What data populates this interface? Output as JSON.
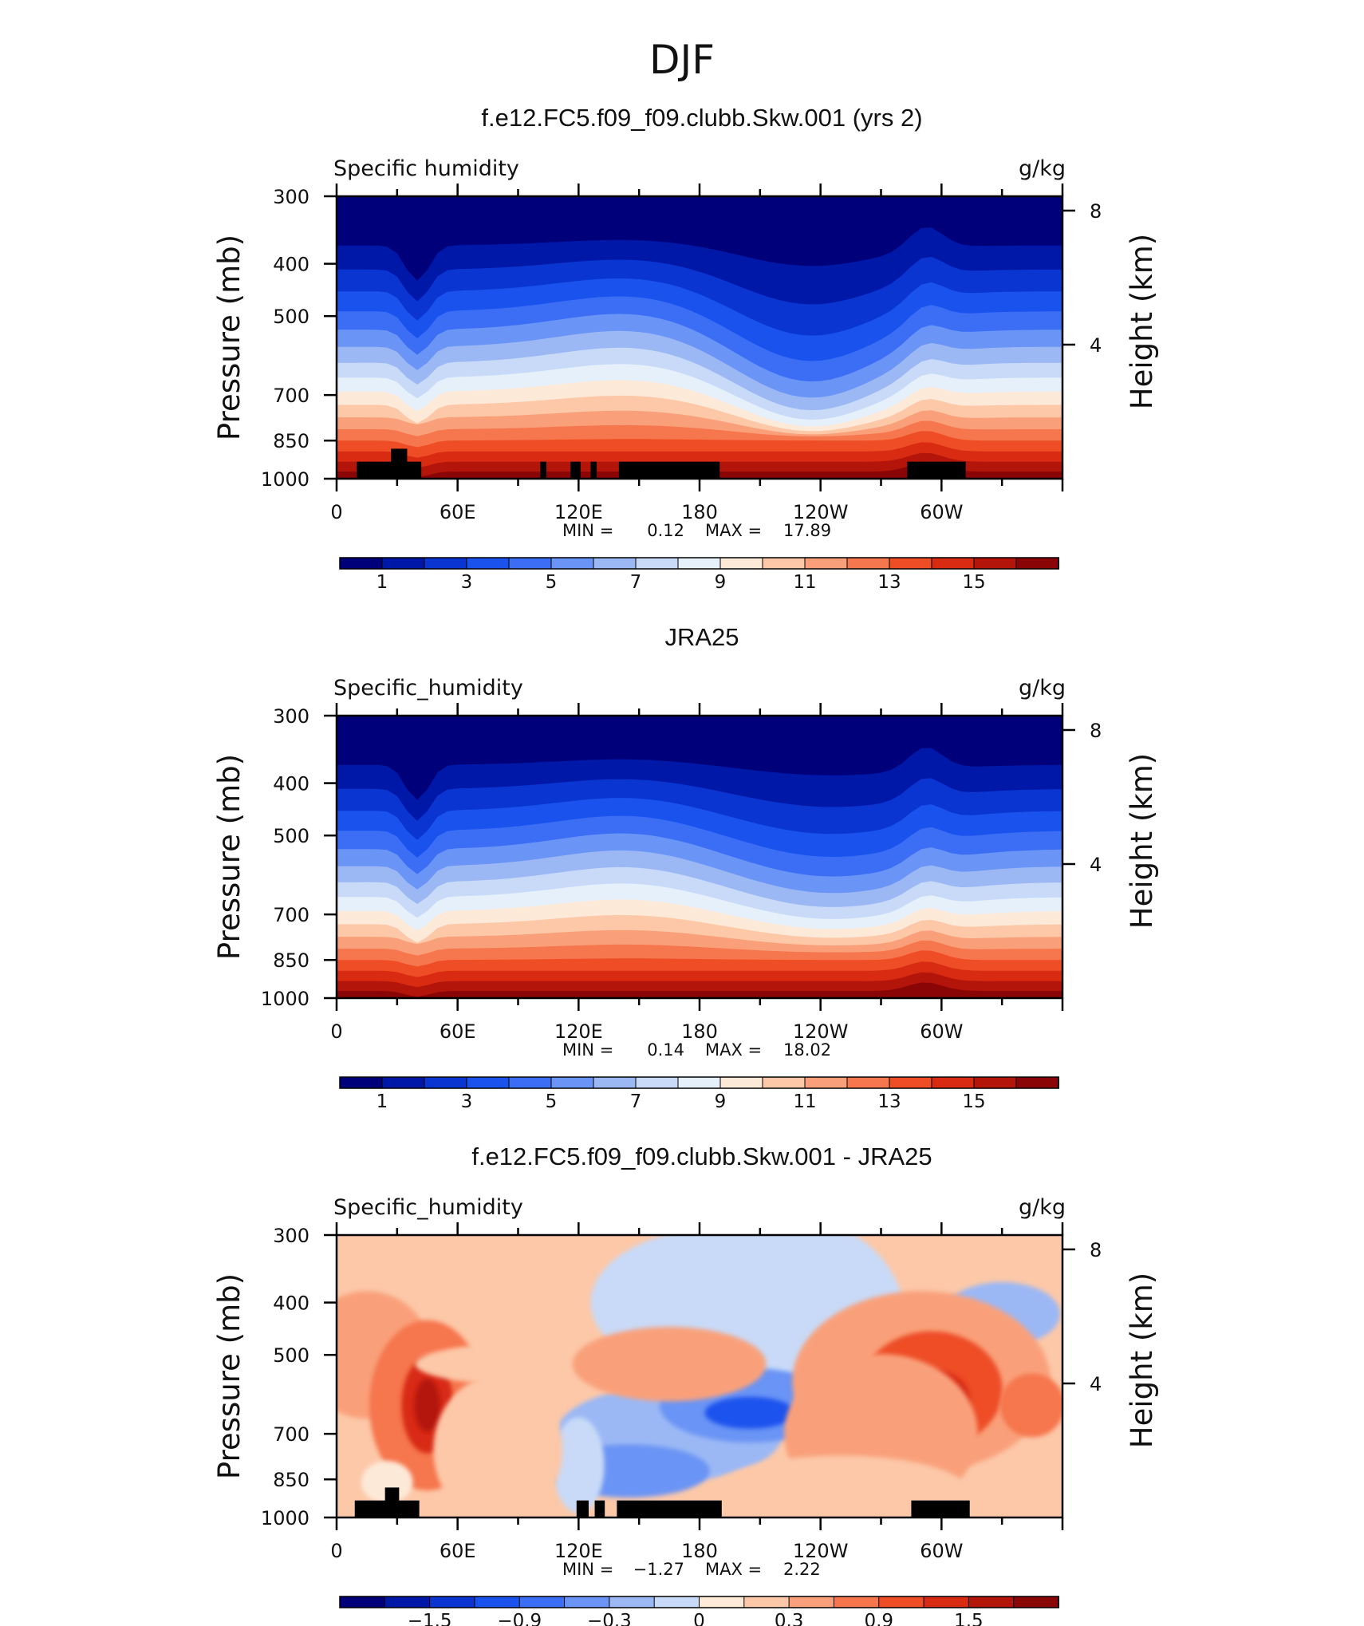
{
  "figure": {
    "title": "DJF",
    "right_axis_label": "Height (km)",
    "left_axis_label": "Pressure (mb)"
  },
  "chart_data": [
    {
      "type": "heatmap",
      "id": "model",
      "title": "f.e12.FC5.f09_f09.clubb.Skw.001 (yrs 2)",
      "variable": "Specific humidity",
      "units": "g/kg",
      "ylabel": "Pressure (mb)",
      "y2label": "Height (km)",
      "x_ticks": [
        "0",
        "60E",
        "120E",
        "180",
        "120W",
        "60W"
      ],
      "x_tick_lon": [
        0,
        60,
        120,
        180,
        240,
        300
      ],
      "x_range": [
        0,
        360
      ],
      "y_ticks": [
        "300",
        "400",
        "500",
        "700",
        "850",
        "1000"
      ],
      "y_tick_values": [
        300,
        400,
        500,
        700,
        850,
        1000
      ],
      "y_range": [
        300,
        1000
      ],
      "y2_ticks": [
        "8",
        "4"
      ],
      "y2_tick_km": [
        8,
        4
      ],
      "stats": {
        "min_label": "MIN =",
        "min": "0.12",
        "max_label": "MAX =",
        "max": "17.89"
      },
      "colorbar_labels": [
        "1",
        "3",
        "5",
        "7",
        "9",
        "11",
        "13",
        "15"
      ],
      "colorbar_levels": [
        1,
        3,
        5,
        7,
        9,
        11,
        13,
        15
      ],
      "colormap": [
        "#00007a",
        "#0018a8",
        "#0a35d0",
        "#1a52ee",
        "#3b6ef5",
        "#6a94f5",
        "#9bb8f5",
        "#c8daf7",
        "#e6f0fb",
        "#fde9d8",
        "#fcc8a8",
        "#f9a07a",
        "#f6764e",
        "#ee4d26",
        "#d82b12",
        "#b4150a",
        "#8a0505"
      ],
      "field_summary": "moisture decreasing with height; max ~18 g/kg near 1000 mb; drier tongue over 120W–150W; black masks mark topography"
    },
    {
      "type": "heatmap",
      "id": "obs",
      "title": "JRA25",
      "variable": "Specific_humidity",
      "units": "g/kg",
      "ylabel": "Pressure (mb)",
      "y2label": "Height (km)",
      "x_ticks": [
        "0",
        "60E",
        "120E",
        "180",
        "120W",
        "60W"
      ],
      "x_tick_lon": [
        0,
        60,
        120,
        180,
        240,
        300
      ],
      "x_range": [
        0,
        360
      ],
      "y_ticks": [
        "300",
        "400",
        "500",
        "700",
        "850",
        "1000"
      ],
      "y_tick_values": [
        300,
        400,
        500,
        700,
        850,
        1000
      ],
      "y_range": [
        300,
        1000
      ],
      "y2_ticks": [
        "8",
        "4"
      ],
      "y2_tick_km": [
        8,
        4
      ],
      "stats": {
        "min_label": "MIN =",
        "min": "0.14",
        "max_label": "MAX =",
        "max": "18.02"
      },
      "colorbar_labels": [
        "1",
        "3",
        "5",
        "7",
        "9",
        "11",
        "13",
        "15"
      ],
      "colorbar_levels": [
        1,
        3,
        5,
        7,
        9,
        11,
        13,
        15
      ],
      "colormap": [
        "#00007a",
        "#0018a8",
        "#0a35d0",
        "#1a52ee",
        "#3b6ef5",
        "#6a94f5",
        "#9bb8f5",
        "#c8daf7",
        "#e6f0fb",
        "#fde9d8",
        "#fcc8a8",
        "#f9a07a",
        "#f6764e",
        "#ee4d26",
        "#d82b12",
        "#b4150a",
        "#8a0505"
      ],
      "field_summary": "moisture decreasing with height; max ~18 g/kg near 1000 mb"
    },
    {
      "type": "heatmap",
      "id": "diff",
      "title": "f.e12.FC5.f09_f09.clubb.Skw.001 - JRA25",
      "variable": "Specific_humidity",
      "units": "g/kg",
      "ylabel": "Pressure (mb)",
      "y2label": "Height (km)",
      "x_ticks": [
        "0",
        "60E",
        "120E",
        "180",
        "120W",
        "60W"
      ],
      "x_tick_lon": [
        0,
        60,
        120,
        180,
        240,
        300
      ],
      "x_range": [
        0,
        360
      ],
      "y_ticks": [
        "300",
        "400",
        "500",
        "700",
        "850",
        "1000"
      ],
      "y_tick_values": [
        300,
        400,
        500,
        700,
        850,
        1000
      ],
      "y_range": [
        300,
        1000
      ],
      "y2_ticks": [
        "8",
        "4"
      ],
      "y2_tick_km": [
        8,
        4
      ],
      "stats": {
        "min_label": "MIN =",
        "min": "−1.27",
        "max_label": "MAX =",
        "max": "2.22"
      },
      "colorbar_labels": [
        "−1.5",
        "−0.9",
        "−0.3",
        "0",
        "0.3",
        "0.9",
        "1.5"
      ],
      "colorbar_levels": [
        -1.5,
        -0.9,
        -0.3,
        0,
        0.3,
        0.9,
        1.5
      ],
      "colormap": [
        "#00007a",
        "#0018a8",
        "#0a35d0",
        "#1a52ee",
        "#3b6ef5",
        "#6a94f5",
        "#9bb8f5",
        "#c8daf7",
        "#fde9d8",
        "#fcc8a8",
        "#f9a07a",
        "#f6764e",
        "#ee4d26",
        "#d82b12",
        "#b4150a",
        "#8a0505"
      ],
      "field_summary": "positive anomalies (red) dominate; negative anomaly (blue) centered near 150W around 700 mb; black masks mark topography"
    }
  ]
}
